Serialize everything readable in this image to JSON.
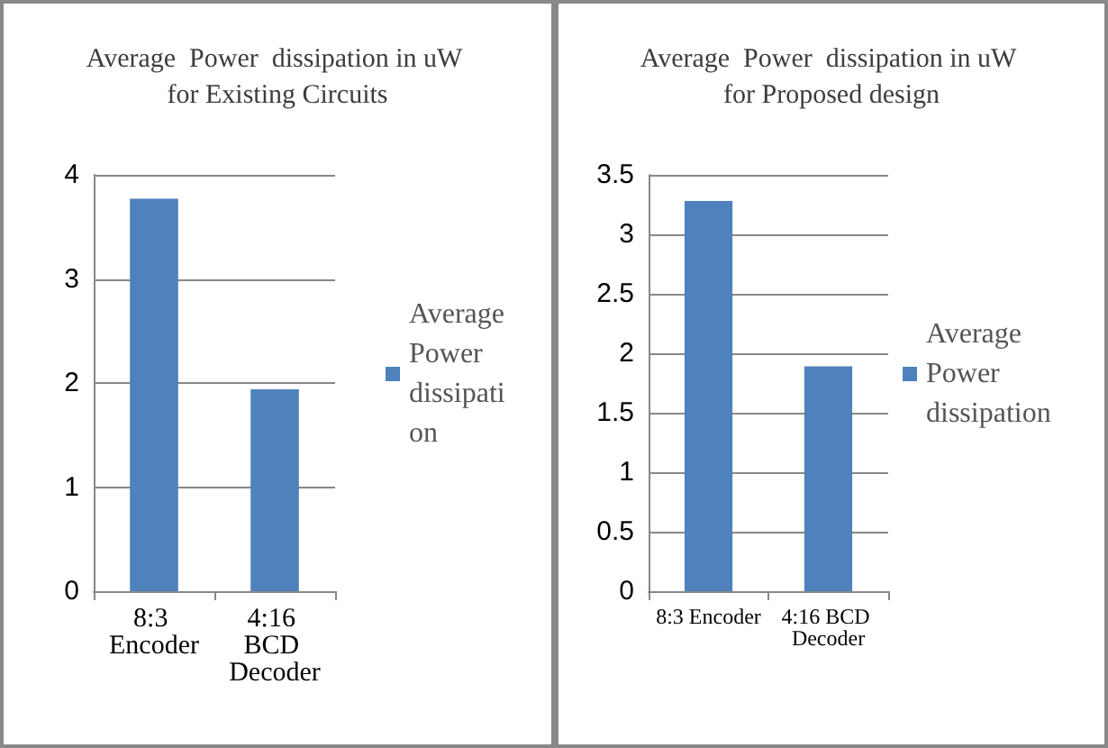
{
  "chart_data": [
    {
      "type": "bar",
      "title": "Average  Power  dissipation in uW for Existing Circuits",
      "categories": [
        "8:3 Encoder",
        "4:16 BCD Decoder"
      ],
      "series": [
        {
          "name": "Average Power dissipation",
          "color": "#4f81bd",
          "values": [
            3.77,
            1.94
          ]
        }
      ],
      "ylim": [
        0,
        4
      ],
      "yticks": [
        0,
        1,
        2,
        3,
        4
      ],
      "grid": "y",
      "legend": "right"
    },
    {
      "type": "bar",
      "title": "Average  Power  dissipation in uW for Proposed design",
      "categories": [
        "8:3 Encoder",
        "4:16 BCD Decoder"
      ],
      "series": [
        {
          "name": "Average Power dissipation",
          "color": "#4f81bd",
          "values": [
            3.28,
            1.89
          ]
        }
      ],
      "ylim": [
        0,
        3.5
      ],
      "yticks": [
        0,
        0.5,
        1,
        1.5,
        2,
        2.5,
        3,
        3.5
      ],
      "grid": "y",
      "legend": "right"
    }
  ]
}
